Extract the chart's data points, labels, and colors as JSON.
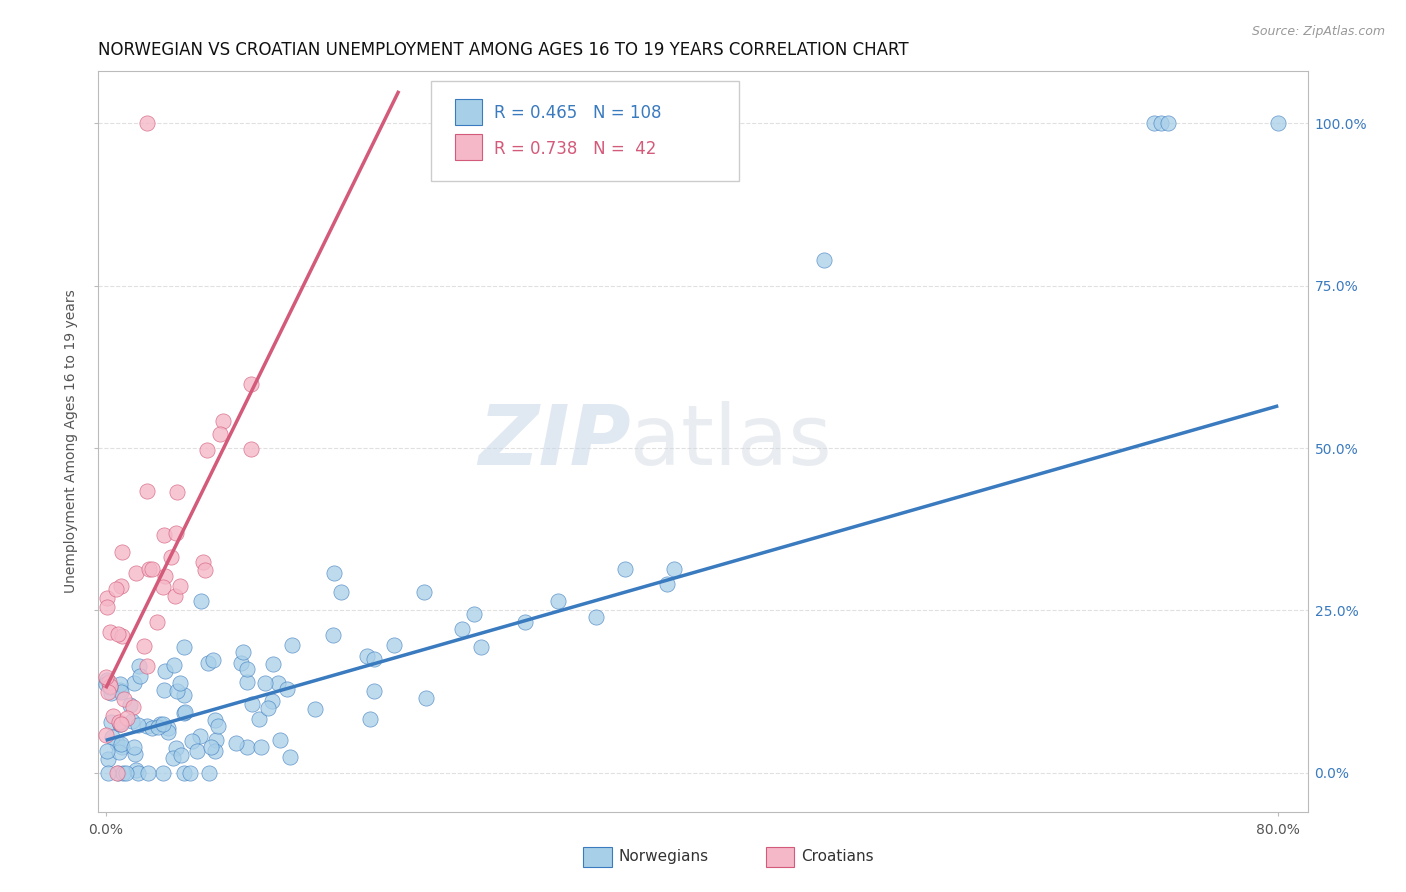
{
  "title": "NORWEGIAN VS CROATIAN UNEMPLOYMENT AMONG AGES 16 TO 19 YEARS CORRELATION CHART",
  "source": "Source: ZipAtlas.com",
  "ylabel": "Unemployment Among Ages 16 to 19 years",
  "norwegian_R": 0.465,
  "norwegian_N": 108,
  "croatian_R": 0.738,
  "croatian_N": 42,
  "norwegian_color": "#a8cfe8",
  "croatian_color": "#f5b8c8",
  "norwegian_line_color": "#3a7abf",
  "croatian_line_color": "#d45a7a",
  "watermark_zip": "ZIP",
  "watermark_atlas": "atlas",
  "ytick_labels": [
    "0.0%",
    "25.0%",
    "50.0%",
    "75.0%",
    "100.0%"
  ],
  "ytick_values": [
    0.0,
    0.25,
    0.5,
    0.75,
    1.0
  ],
  "xmin": -0.005,
  "xmax": 0.82,
  "ymin": -0.06,
  "ymax": 1.08,
  "nor_trend_x": [
    0.0,
    0.8
  ],
  "nor_trend_y": [
    0.05,
    0.565
  ],
  "cro_trend_x": [
    0.0,
    0.2
  ],
  "cro_trend_y": [
    0.13,
    1.05
  ],
  "legend_nor_label": "R = 0.465   N = 108",
  "legend_cro_label": "R = 0.738   N =  42",
  "legend_nor_color": "#3a7abf",
  "legend_cro_color": "#d45a7a",
  "background_color": "#ffffff",
  "grid_color": "#e0e0e0",
  "title_fontsize": 12,
  "axis_label_fontsize": 10,
  "right_tick_color": "#3a7abf",
  "bottom_legend_nor": "Norwegians",
  "bottom_legend_cro": "Croatians"
}
